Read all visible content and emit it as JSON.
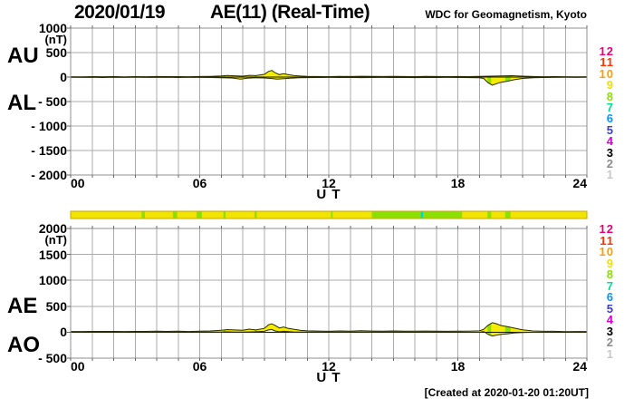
{
  "header": {
    "date": "2020/01/19",
    "title": "AE(11) (Real-Time)",
    "source": "WDC for Geomagnetism, Kyoto"
  },
  "footer": {
    "created": "[Created at 2020-01-20 01:20UT]"
  },
  "panel_labels": {
    "top": [
      "AU",
      "AL"
    ],
    "bottom": [
      "AE",
      "AO"
    ]
  },
  "station_scale": {
    "entries": [
      {
        "n": "12",
        "color": "#e6007e"
      },
      {
        "n": "11",
        "color": "#ff3200"
      },
      {
        "n": "10",
        "color": "#ff9c00"
      },
      {
        "n": "9",
        "color": "#f0e000"
      },
      {
        "n": "8",
        "color": "#8ce000"
      },
      {
        "n": "7",
        "color": "#00dc96"
      },
      {
        "n": "6",
        "color": "#0096ff"
      },
      {
        "n": "5",
        "color": "#3c3cd2"
      },
      {
        "n": "4",
        "color": "#d200d2"
      },
      {
        "n": "3",
        "color": "#000000"
      },
      {
        "n": "2",
        "color": "#8c8c8c"
      },
      {
        "n": "1",
        "color": "#c8c8c8"
      }
    ]
  },
  "station_bar": {
    "base_color": "#f0e400",
    "border_color": "#c8a800",
    "range_hours": [
      0,
      24
    ],
    "segments": [
      {
        "from": 3.3,
        "to": 3.45,
        "color": "#8ce000"
      },
      {
        "from": 4.75,
        "to": 4.95,
        "color": "#8ce000"
      },
      {
        "from": 5.85,
        "to": 6.1,
        "color": "#8ce000"
      },
      {
        "from": 7.1,
        "to": 7.2,
        "color": "#8ce000"
      },
      {
        "from": 8.55,
        "to": 8.65,
        "color": "#8ce000"
      },
      {
        "from": 12.1,
        "to": 12.18,
        "color": "#8ce000"
      },
      {
        "from": 14.0,
        "to": 18.2,
        "color": "#8ce000"
      },
      {
        "from": 16.28,
        "to": 16.38,
        "color": "#00d8d2"
      },
      {
        "from": 19.38,
        "to": 19.55,
        "color": "#8ce000"
      },
      {
        "from": 20.2,
        "to": 20.45,
        "color": "#8ce000"
      }
    ]
  },
  "chart_data": [
    {
      "type": "area",
      "name": "AU-AL panel",
      "ylim": [
        -2000,
        1000
      ],
      "unit": "(nT)",
      "xlabel": "U T",
      "yticks": [
        {
          "v": 1000,
          "label": "1000"
        },
        {
          "v": 500,
          "label": "500"
        },
        {
          "v": 0,
          "label": "0"
        },
        {
          "v": -500,
          "label": "- 500"
        },
        {
          "v": -1000,
          "label": "- 1000"
        },
        {
          "v": -1500,
          "label": "- 1500"
        },
        {
          "v": -2000,
          "label": "- 2000"
        }
      ],
      "xticks": [
        {
          "t": 0,
          "label": "00",
          "anchor": "start"
        },
        {
          "t": 6,
          "label": "06",
          "anchor": "middle"
        },
        {
          "t": 12,
          "label": "12",
          "anchor": "middle"
        },
        {
          "t": 18,
          "label": "18",
          "anchor": "middle"
        },
        {
          "t": 24,
          "label": "24",
          "anchor": "end"
        }
      ],
      "fill_color": "#f6ec00",
      "series": [
        {
          "name": "AU",
          "points": [
            [
              0,
              8
            ],
            [
              0.5,
              6
            ],
            [
              1,
              10
            ],
            [
              1.5,
              7
            ],
            [
              2,
              9
            ],
            [
              2.5,
              6
            ],
            [
              3,
              10
            ],
            [
              3.5,
              8
            ],
            [
              4,
              11
            ],
            [
              4.5,
              9
            ],
            [
              5,
              10
            ],
            [
              5.5,
              8
            ],
            [
              6,
              12
            ],
            [
              6.5,
              14
            ],
            [
              7,
              22
            ],
            [
              7.3,
              32
            ],
            [
              7.6,
              26
            ],
            [
              8,
              18
            ],
            [
              8.3,
              36
            ],
            [
              8.6,
              30
            ],
            [
              9,
              55
            ],
            [
              9.2,
              115
            ],
            [
              9.35,
              135
            ],
            [
              9.5,
              90
            ],
            [
              9.7,
              50
            ],
            [
              9.9,
              68
            ],
            [
              10.1,
              52
            ],
            [
              10.4,
              30
            ],
            [
              10.7,
              20
            ],
            [
              11,
              15
            ],
            [
              11.5,
              12
            ],
            [
              12,
              10
            ],
            [
              12.5,
              14
            ],
            [
              13,
              12
            ],
            [
              13.5,
              17
            ],
            [
              14,
              14
            ],
            [
              14.5,
              12
            ],
            [
              15,
              14
            ],
            [
              15.5,
              11
            ],
            [
              16,
              10
            ],
            [
              16.5,
              13
            ],
            [
              17,
              11
            ],
            [
              17.5,
              9
            ],
            [
              18,
              11
            ],
            [
              18.5,
              9
            ],
            [
              19,
              13
            ],
            [
              19.5,
              18
            ],
            [
              20,
              24
            ],
            [
              20.5,
              28
            ],
            [
              21,
              18
            ],
            [
              21.5,
              11
            ],
            [
              22,
              8
            ],
            [
              22.5,
              9
            ],
            [
              23,
              7
            ],
            [
              23.5,
              6
            ],
            [
              24,
              8
            ]
          ]
        },
        {
          "name": "AL",
          "points": [
            [
              0,
              -6
            ],
            [
              0.5,
              -8
            ],
            [
              1,
              -5
            ],
            [
              1.5,
              -9
            ],
            [
              2,
              -6
            ],
            [
              2.5,
              -8
            ],
            [
              3,
              -5
            ],
            [
              3.5,
              -7
            ],
            [
              4,
              -8
            ],
            [
              4.5,
              -6
            ],
            [
              5,
              -9
            ],
            [
              5.5,
              -6
            ],
            [
              6,
              -8
            ],
            [
              6.5,
              -10
            ],
            [
              7,
              -14
            ],
            [
              7.5,
              -18
            ],
            [
              7.9,
              -42
            ],
            [
              8.2,
              -24
            ],
            [
              8.6,
              -14
            ],
            [
              9,
              -18
            ],
            [
              9.3,
              -28
            ],
            [
              9.6,
              -42
            ],
            [
              9.9,
              -33
            ],
            [
              10.2,
              -24
            ],
            [
              10.6,
              -15
            ],
            [
              11,
              -12
            ],
            [
              11.5,
              -10
            ],
            [
              12,
              -8
            ],
            [
              12.5,
              -10
            ],
            [
              13,
              -9
            ],
            [
              13.5,
              -11
            ],
            [
              14,
              -9
            ],
            [
              14.5,
              -8
            ],
            [
              15,
              -10
            ],
            [
              15.5,
              -9
            ],
            [
              16,
              -11
            ],
            [
              16.5,
              -9
            ],
            [
              17,
              -10
            ],
            [
              17.5,
              -8
            ],
            [
              18,
              -10
            ],
            [
              18.5,
              -12
            ],
            [
              19,
              -14
            ],
            [
              19.2,
              -28
            ],
            [
              19.4,
              -115
            ],
            [
              19.6,
              -165
            ],
            [
              19.8,
              -135
            ],
            [
              20,
              -105
            ],
            [
              20.3,
              -85
            ],
            [
              20.6,
              -55
            ],
            [
              21,
              -28
            ],
            [
              21.5,
              -14
            ],
            [
              22,
              -10
            ],
            [
              22.5,
              -8
            ],
            [
              23,
              -6
            ],
            [
              23.5,
              -8
            ],
            [
              24,
              -6
            ]
          ]
        }
      ]
    },
    {
      "type": "area",
      "name": "AE-AO panel",
      "ylim": [
        -500,
        2000
      ],
      "unit": "(nT)",
      "xlabel": "U T",
      "yticks": [
        {
          "v": 2000,
          "label": "2000"
        },
        {
          "v": 1500,
          "label": "1500"
        },
        {
          "v": 1000,
          "label": "1000"
        },
        {
          "v": 500,
          "label": "500"
        },
        {
          "v": 0,
          "label": "0"
        },
        {
          "v": -500,
          "label": "- 500"
        }
      ],
      "xticks": [
        {
          "t": 0,
          "label": "00",
          "anchor": "start"
        },
        {
          "t": 6,
          "label": "06",
          "anchor": "middle"
        },
        {
          "t": 12,
          "label": "12",
          "anchor": "middle"
        },
        {
          "t": 18,
          "label": "18",
          "anchor": "middle"
        },
        {
          "t": 24,
          "label": "24",
          "anchor": "end"
        }
      ],
      "fill_color": "#f6ec00",
      "series": [
        {
          "name": "AE",
          "points": [
            [
              0,
              14
            ],
            [
              0.5,
              14
            ],
            [
              1,
              15
            ],
            [
              1.5,
              16
            ],
            [
              2,
              15
            ],
            [
              2.5,
              14
            ],
            [
              3,
              15
            ],
            [
              3.5,
              15
            ],
            [
              4,
              19
            ],
            [
              4.5,
              15
            ],
            [
              5,
              19
            ],
            [
              5.5,
              14
            ],
            [
              6,
              20
            ],
            [
              6.5,
              24
            ],
            [
              7,
              36
            ],
            [
              7.3,
              50
            ],
            [
              7.6,
              44
            ],
            [
              8,
              36
            ],
            [
              8.3,
              60
            ],
            [
              8.6,
              44
            ],
            [
              9,
              73
            ],
            [
              9.2,
              143
            ],
            [
              9.35,
              163
            ],
            [
              9.5,
              132
            ],
            [
              9.7,
              83
            ],
            [
              9.9,
              101
            ],
            [
              10.1,
              76
            ],
            [
              10.4,
              54
            ],
            [
              10.7,
              35
            ],
            [
              11,
              27
            ],
            [
              11.5,
              22
            ],
            [
              12,
              18
            ],
            [
              12.5,
              24
            ],
            [
              13,
              21
            ],
            [
              13.5,
              28
            ],
            [
              14,
              23
            ],
            [
              14.5,
              20
            ],
            [
              15,
              24
            ],
            [
              15.5,
              20
            ],
            [
              16,
              21
            ],
            [
              16.5,
              22
            ],
            [
              17,
              21
            ],
            [
              17.5,
              17
            ],
            [
              18,
              21
            ],
            [
              18.5,
              21
            ],
            [
              19,
              27
            ],
            [
              19.2,
              56
            ],
            [
              19.4,
              133
            ],
            [
              19.6,
              183
            ],
            [
              19.8,
              163
            ],
            [
              20,
              129
            ],
            [
              20.3,
              109
            ],
            [
              20.6,
              83
            ],
            [
              21,
              46
            ],
            [
              21.5,
              25
            ],
            [
              22,
              18
            ],
            [
              22.5,
              17
            ],
            [
              23,
              13
            ],
            [
              23.5,
              14
            ],
            [
              24,
              14
            ]
          ]
        },
        {
          "name": "AO",
          "points": [
            [
              0,
              1
            ],
            [
              0.5,
              -1
            ],
            [
              1,
              2
            ],
            [
              1.5,
              -1
            ],
            [
              2,
              1
            ],
            [
              2.5,
              -1
            ],
            [
              3,
              2
            ],
            [
              3.5,
              0
            ],
            [
              4,
              2
            ],
            [
              4.5,
              1
            ],
            [
              5,
              1
            ],
            [
              5.5,
              1
            ],
            [
              6,
              2
            ],
            [
              6.5,
              2
            ],
            [
              7,
              4
            ],
            [
              7.3,
              7
            ],
            [
              7.6,
              4
            ],
            [
              8,
              2
            ],
            [
              8.3,
              6
            ],
            [
              8.6,
              8
            ],
            [
              9,
              18
            ],
            [
              9.2,
              44
            ],
            [
              9.35,
              53
            ],
            [
              9.5,
              24
            ],
            [
              9.7,
              9
            ],
            [
              9.9,
              17
            ],
            [
              10.1,
              14
            ],
            [
              10.4,
              3
            ],
            [
              10.7,
              2
            ],
            [
              11,
              2
            ],
            [
              11.5,
              1
            ],
            [
              12,
              1
            ],
            [
              12.5,
              2
            ],
            [
              13,
              1
            ],
            [
              13.5,
              3
            ],
            [
              14,
              2
            ],
            [
              14.5,
              2
            ],
            [
              15,
              2
            ],
            [
              15.5,
              1
            ],
            [
              16,
              0
            ],
            [
              16.5,
              2
            ],
            [
              17,
              1
            ],
            [
              17.5,
              0
            ],
            [
              18,
              0
            ],
            [
              18.5,
              -2
            ],
            [
              19,
              -1
            ],
            [
              19.2,
              14
            ],
            [
              19.4,
              -41
            ],
            [
              19.6,
              -74
            ],
            [
              19.8,
              -56
            ],
            [
              20,
              -41
            ],
            [
              20.3,
              -31
            ],
            [
              20.6,
              -16
            ],
            [
              21,
              -5
            ],
            [
              21.5,
              -2
            ],
            [
              22,
              -1
            ],
            [
              22.5,
              0
            ],
            [
              23,
              0
            ],
            [
              23.5,
              -1
            ],
            [
              24,
              1
            ]
          ]
        }
      ]
    }
  ]
}
